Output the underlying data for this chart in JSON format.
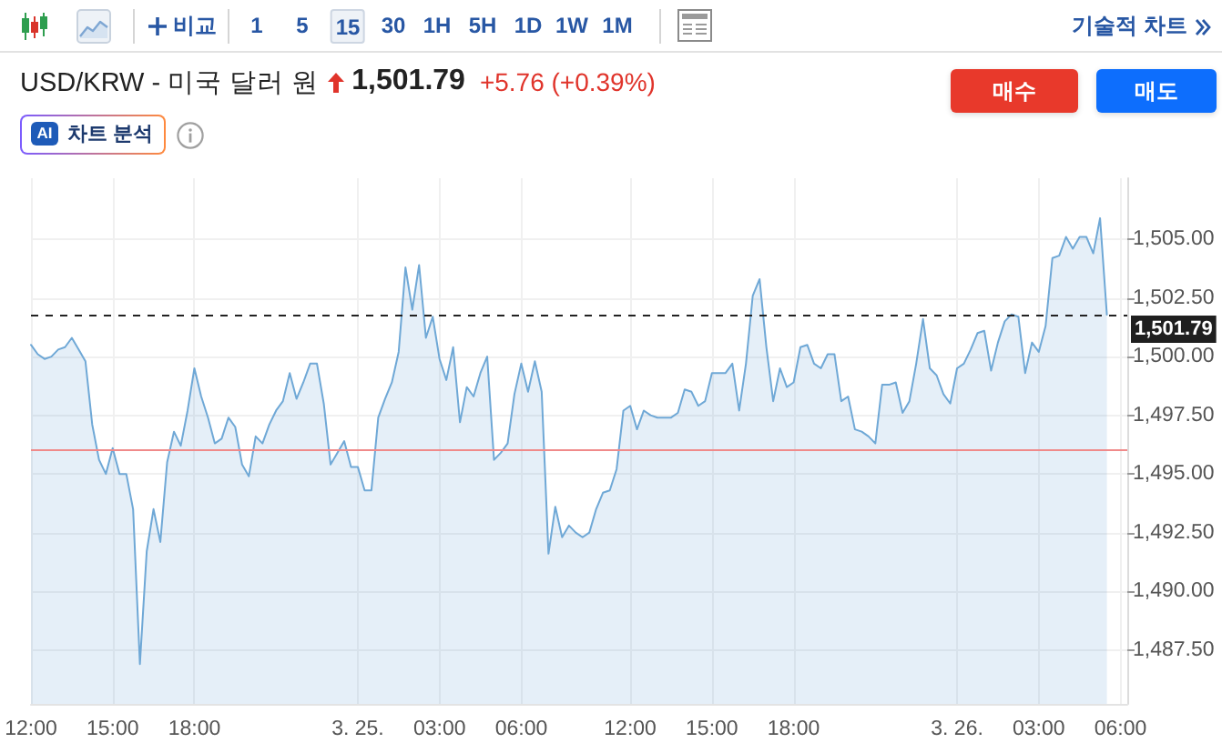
{
  "chart_data": {
    "type": "area",
    "title": "USD/KRW - 미국 달러 원",
    "subtitle": "1,501.79",
    "annotations": [
      "+5.76 (+0.39%)",
      "비교",
      "15",
      "1",
      "5",
      "30",
      "1H",
      "5H",
      "1D",
      "1W",
      "1M",
      "기술적 차트",
      "매수",
      "매도",
      "AI",
      "차트 분석"
    ],
    "categories": [
      "12:00",
      null,
      null,
      null,
      null,
      null,
      null,
      null,
      null,
      null,
      null,
      null,
      "15:00",
      null,
      null,
      null,
      null,
      null,
      null,
      null,
      null,
      null,
      null,
      null,
      "18:00",
      null,
      null,
      null,
      null,
      null,
      null,
      null,
      null,
      null,
      null,
      null,
      null,
      null,
      null,
      null,
      null,
      null,
      null,
      null,
      null,
      null,
      null,
      null,
      "3. 25.",
      null,
      null,
      null,
      null,
      null,
      null,
      null,
      null,
      null,
      null,
      null,
      "03:00",
      null,
      null,
      null,
      null,
      null,
      null,
      null,
      null,
      null,
      null,
      null,
      "06:00",
      null,
      null,
      null,
      null,
      null,
      null,
      null,
      null,
      null,
      null,
      null,
      null,
      null,
      null,
      null,
      "12:00",
      null,
      null,
      null,
      null,
      null,
      null,
      null,
      null,
      null,
      null,
      null,
      "15:00",
      null,
      null,
      null,
      null,
      null,
      null,
      null,
      null,
      null,
      null,
      null,
      "18:00",
      null,
      null,
      null,
      null,
      null,
      null,
      null,
      null,
      null,
      null,
      null,
      null,
      null,
      null,
      null,
      null,
      null,
      null,
      null,
      null,
      null,
      null,
      null,
      "3. 26.",
      null,
      null,
      null,
      null,
      null,
      null,
      null,
      null,
      null,
      null,
      null,
      "03:00",
      null,
      null,
      null,
      null,
      null,
      null,
      null,
      null,
      null,
      null,
      null,
      "06:00",
      null
    ],
    "values": [
      1500.5,
      1500.1,
      1499.9,
      1500.0,
      1500.3,
      1500.4,
      1500.8,
      1500.3,
      1499.8,
      1497.1,
      1495.6,
      1495.0,
      1496.1,
      1495.0,
      1495.0,
      1493.5,
      1486.9,
      1491.7,
      1493.5,
      1492.1,
      1495.5,
      1496.8,
      1496.2,
      1497.7,
      1499.5,
      1498.3,
      1497.4,
      1496.3,
      1496.5,
      1497.4,
      1497.0,
      1495.4,
      1494.9,
      1496.6,
      1496.3,
      1497.1,
      1497.7,
      1498.1,
      1499.3,
      1498.2,
      1498.9,
      1499.7,
      1499.7,
      1498.0,
      1495.4,
      1495.9,
      1496.4,
      1495.3,
      1495.3,
      1494.3,
      1494.3,
      1497.4,
      1498.2,
      1498.9,
      1500.2,
      1503.8,
      1502.0,
      1503.9,
      1500.8,
      1501.7,
      1499.9,
      1499.0,
      1500.4,
      1497.2,
      1498.7,
      1498.3,
      1499.3,
      1500.0,
      1495.6,
      1495.9,
      1496.3,
      1498.4,
      1499.7,
      1498.5,
      1499.8,
      1498.5,
      1491.6,
      1493.6,
      1492.3,
      1492.8,
      1492.5,
      1492.3,
      1492.5,
      1493.5,
      1494.2,
      1494.3,
      1495.2,
      1497.7,
      1497.9,
      1496.9,
      1497.7,
      1497.5,
      1497.4,
      1497.4,
      1497.4,
      1497.6,
      1498.6,
      1498.5,
      1497.9,
      1498.1,
      1499.3,
      1499.3,
      1499.3,
      1499.7,
      1497.7,
      1499.7,
      1502.6,
      1503.3,
      1500.4,
      1498.1,
      1499.5,
      1498.7,
      1498.9,
      1500.4,
      1500.5,
      1499.7,
      1499.5,
      1500.1,
      1500.1,
      1498.1,
      1498.3,
      1496.9,
      1496.8,
      1496.6,
      1496.3,
      1498.8,
      1498.8,
      1498.9,
      1497.6,
      1498.1,
      1499.7,
      1501.6,
      1499.5,
      1499.2,
      1498.4,
      1498.0,
      1499.5,
      1499.7,
      1500.3,
      1501.0,
      1501.1,
      1499.4,
      1500.6,
      1501.5,
      1501.8,
      1501.7,
      1499.3,
      1500.6,
      1500.2,
      1501.3,
      1504.2,
      1504.3,
      1505.1,
      1504.6,
      1505.1,
      1505.1,
      1504.4,
      1505.9,
      1501.79,
      null,
      null,
      null
    ],
    "color": "#6fa8d6",
    "ylim": [
      1485.2,
      1507.6
    ],
    "yticks": [
      {
        "value": 1487.5,
        "label": "1,487.50"
      },
      {
        "value": 1490,
        "label": "1,490.00"
      },
      {
        "value": 1492.5,
        "label": "1,492.50"
      },
      {
        "value": 1495,
        "label": "1,495.00"
      },
      {
        "value": 1497.5,
        "label": "1,497.50"
      },
      {
        "value": 1500,
        "label": "1,500.00"
      },
      {
        "value": 1502.5,
        "label": "1,502.50"
      },
      {
        "value": 1505,
        "label": "1,505.00"
      }
    ],
    "grid": true,
    "ref_lines": [
      {
        "axis": "y",
        "value": 1501.79,
        "label": "1,501.79",
        "color": "#222222",
        "line_style": "dashed"
      },
      {
        "axis": "y",
        "value": 1496.0,
        "color": "#f08a8a"
      }
    ]
  }
}
